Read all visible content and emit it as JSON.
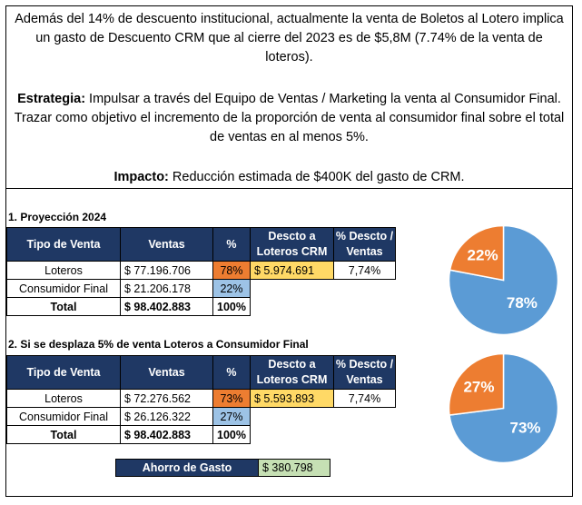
{
  "intro": {
    "paragraph1": "Además del 14% de descuento institucional, actualmente la venta de Boletos al Lotero implica un gasto de Descuento CRM que al cierre del 2023 es de $5,8M (7.74% de la venta de loteros).",
    "strategy_label": "Estrategia:",
    "strategy_text": " Impulsar a través del Equipo de Ventas / Marketing la venta al Consumidor Final. Trazar como objetivo el incremento de la proporción de venta al consumidor final sobre el total de ventas en al menos 5%.",
    "impact_label": "Impacto:",
    "impact_text": " Reducción estimada de $400K del gasto de CRM."
  },
  "headers": {
    "tipo": "Tipo de Venta",
    "ventas": "Ventas",
    "pct": "%",
    "desc_line1": "Descto a",
    "desc_line2": "Loteros CRM",
    "pdesc_line1": "% Descto /",
    "pdesc_line2": "Ventas"
  },
  "section1": {
    "title": "1. Proyección 2024",
    "rows": [
      {
        "tipo": "Loteros",
        "ventas": "$ 77.196.706",
        "pct": "78%",
        "desc": "$ 5.974.691",
        "pdesc": "7,74%"
      },
      {
        "tipo": "Consumidor Final",
        "ventas": "$ 21.206.178",
        "pct": "22%"
      },
      {
        "tipo": "Total",
        "ventas": "$ 98.402.883",
        "pct": "100%"
      }
    ],
    "pie": {
      "large_label": "78%",
      "small_label": "22%",
      "large_value": 78,
      "small_value": 22
    }
  },
  "section2": {
    "title": "2. Si se desplaza 5% de venta Loteros a Consumidor Final",
    "rows": [
      {
        "tipo": "Loteros",
        "ventas": "$ 72.276.562",
        "pct": "73%",
        "desc": "$ 5.593.893",
        "pdesc": "7,74%"
      },
      {
        "tipo": "Consumidor Final",
        "ventas": "$ 26.126.322",
        "pct": "27%"
      },
      {
        "tipo": "Total",
        "ventas": "$ 98.402.883",
        "pct": "100%"
      }
    ],
    "pie": {
      "large_label": "73%",
      "small_label": "27%",
      "large_value": 73,
      "small_value": 27
    }
  },
  "savings": {
    "label": "Ahorro de Gasto",
    "value": "$ 380.798"
  },
  "colors": {
    "header": "#1f3864",
    "orange": "#ed7d31",
    "blue": "#5b9bd5",
    "light_blue": "#9dc3e6",
    "yellow": "#ffd966",
    "green": "#c6e0b4"
  }
}
